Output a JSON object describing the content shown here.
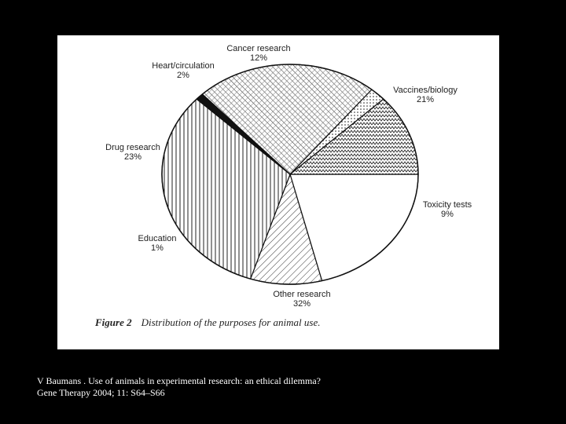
{
  "chart_data": {
    "type": "pie",
    "categories": [
      "Vaccines/biology",
      "Toxicity tests",
      "Other research",
      "Education",
      "Drug research",
      "Heart/circulation",
      "Cancer research"
    ],
    "values": [
      21,
      9,
      32,
      1,
      23,
      2,
      12
    ],
    "value_labels": [
      "21%",
      "9%",
      "32%",
      "1%",
      "23%",
      "2%",
      "12%"
    ],
    "fills": [
      "blank",
      "diagonal-hatch",
      "vertical-lines",
      "solid-black",
      "diagonal-hatch-dense",
      "dots",
      "zigzag"
    ],
    "caption_label": "Figure 2",
    "caption_text": "Distribution of the purposes for animal use."
  },
  "citation": {
    "line1": "V Baumans . Use of animals in experimental research: an ethical dilemma?",
    "line2": "Gene Therapy 2004; 11: S64–S66"
  }
}
